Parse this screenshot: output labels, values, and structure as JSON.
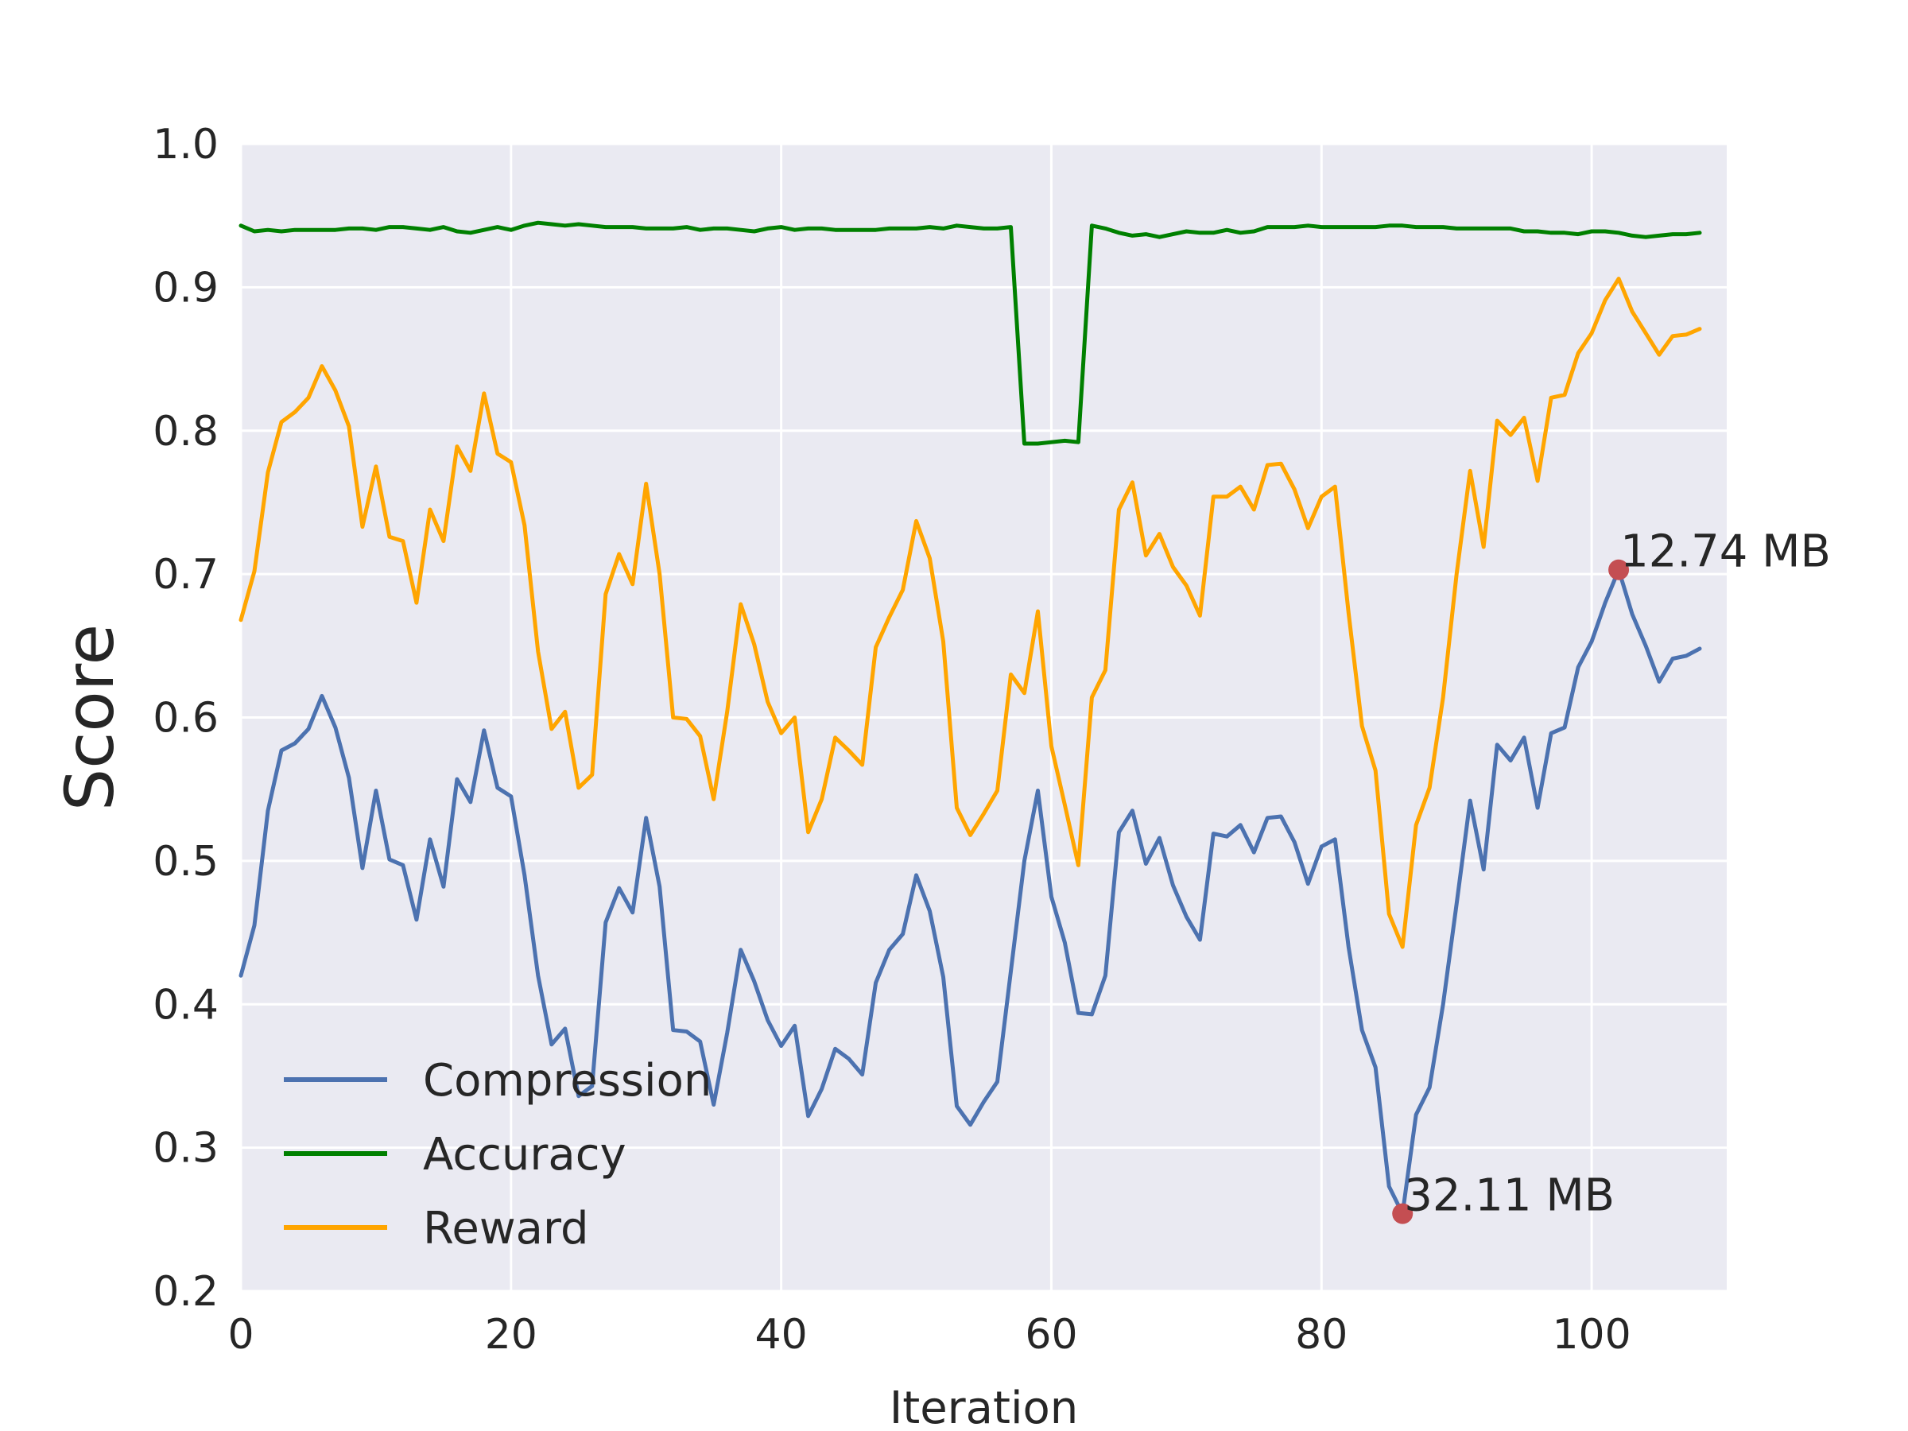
{
  "chart_data": {
    "type": "line",
    "xlabel": "Iteration",
    "ylabel": "Score",
    "xlim": [
      0,
      110
    ],
    "ylim": [
      0.2,
      1.0
    ],
    "xticks": [
      0,
      20,
      40,
      60,
      80,
      100
    ],
    "yticks": [
      0.2,
      0.3,
      0.4,
      0.5,
      0.6,
      0.7,
      0.8,
      0.9,
      1.0
    ],
    "grid": true,
    "legend_position": "lower-left",
    "background_color": "#EAEAF2",
    "series": [
      {
        "name": "Compression",
        "color": "#4C72B0",
        "x_start": 0,
        "x_step": 1,
        "values": [
          0.42,
          0.455,
          0.535,
          0.577,
          0.582,
          0.592,
          0.615,
          0.593,
          0.558,
          0.495,
          0.549,
          0.501,
          0.497,
          0.459,
          0.515,
          0.482,
          0.557,
          0.541,
          0.591,
          0.551,
          0.545,
          0.49,
          0.42,
          0.372,
          0.383,
          0.336,
          0.343,
          0.457,
          0.481,
          0.464,
          0.53,
          0.482,
          0.382,
          0.381,
          0.374,
          0.33,
          0.38,
          0.438,
          0.416,
          0.389,
          0.371,
          0.385,
          0.322,
          0.341,
          0.369,
          0.362,
          0.351,
          0.415,
          0.438,
          0.449,
          0.49,
          0.465,
          0.419,
          0.329,
          0.316,
          0.332,
          0.346,
          0.423,
          0.5,
          0.549,
          0.475,
          0.443,
          0.394,
          0.393,
          0.42,
          0.52,
          0.535,
          0.498,
          0.516,
          0.483,
          0.461,
          0.445,
          0.519,
          0.517,
          0.525,
          0.506,
          0.53,
          0.531,
          0.513,
          0.484,
          0.51,
          0.515,
          0.44,
          0.382,
          0.356,
          0.273,
          0.254,
          0.323,
          0.342,
          0.4,
          0.47,
          0.542,
          0.494,
          0.581,
          0.57,
          0.586,
          0.537,
          0.589,
          0.593,
          0.635,
          0.653,
          0.68,
          0.703,
          0.672,
          0.65,
          0.625,
          0.641,
          0.643,
          0.648
        ]
      },
      {
        "name": "Accuracy",
        "color": "#008000",
        "x_start": 0,
        "x_step": 1,
        "values": [
          0.943,
          0.939,
          0.94,
          0.939,
          0.94,
          0.94,
          0.94,
          0.94,
          0.941,
          0.941,
          0.94,
          0.942,
          0.942,
          0.941,
          0.94,
          0.942,
          0.939,
          0.938,
          0.94,
          0.942,
          0.94,
          0.943,
          0.945,
          0.944,
          0.943,
          0.944,
          0.943,
          0.942,
          0.942,
          0.942,
          0.941,
          0.941,
          0.941,
          0.942,
          0.94,
          0.941,
          0.941,
          0.94,
          0.939,
          0.941,
          0.942,
          0.94,
          0.941,
          0.941,
          0.94,
          0.94,
          0.94,
          0.94,
          0.941,
          0.941,
          0.941,
          0.942,
          0.941,
          0.943,
          0.942,
          0.941,
          0.941,
          0.942,
          0.791,
          0.791,
          0.792,
          0.793,
          0.792,
          0.943,
          0.941,
          0.938,
          0.936,
          0.937,
          0.935,
          0.937,
          0.939,
          0.938,
          0.938,
          0.94,
          0.938,
          0.939,
          0.942,
          0.942,
          0.942,
          0.943,
          0.942,
          0.942,
          0.942,
          0.942,
          0.942,
          0.943,
          0.943,
          0.942,
          0.942,
          0.942,
          0.941,
          0.941,
          0.941,
          0.941,
          0.941,
          0.939,
          0.939,
          0.938,
          0.938,
          0.937,
          0.939,
          0.939,
          0.938,
          0.936,
          0.935,
          0.936,
          0.937,
          0.937,
          0.938
        ]
      },
      {
        "name": "Reward",
        "color": "#FFA500",
        "x_start": 0,
        "x_step": 1,
        "values": [
          0.668,
          0.702,
          0.771,
          0.806,
          0.813,
          0.823,
          0.845,
          0.828,
          0.803,
          0.733,
          0.775,
          0.726,
          0.723,
          0.68,
          0.745,
          0.723,
          0.789,
          0.772,
          0.826,
          0.784,
          0.778,
          0.734,
          0.646,
          0.592,
          0.604,
          0.551,
          0.56,
          0.686,
          0.714,
          0.693,
          0.763,
          0.7,
          0.6,
          0.599,
          0.587,
          0.543,
          0.604,
          0.679,
          0.651,
          0.611,
          0.589,
          0.6,
          0.52,
          0.543,
          0.586,
          0.577,
          0.567,
          0.649,
          0.67,
          0.689,
          0.737,
          0.711,
          0.653,
          0.537,
          0.518,
          0.533,
          0.549,
          0.63,
          0.617,
          0.674,
          0.58,
          0.539,
          0.497,
          0.614,
          0.633,
          0.745,
          0.764,
          0.713,
          0.728,
          0.705,
          0.692,
          0.671,
          0.754,
          0.754,
          0.761,
          0.745,
          0.776,
          0.777,
          0.759,
          0.732,
          0.754,
          0.761,
          0.673,
          0.594,
          0.563,
          0.463,
          0.44,
          0.525,
          0.551,
          0.614,
          0.7,
          0.772,
          0.719,
          0.807,
          0.797,
          0.809,
          0.765,
          0.823,
          0.825,
          0.854,
          0.868,
          0.891,
          0.906,
          0.883,
          0.868,
          0.853,
          0.866,
          0.867,
          0.871
        ]
      }
    ],
    "annotations": [
      {
        "x": 86,
        "y": 0.254,
        "text": "32.11 MB",
        "marker_color": "#C44E52"
      },
      {
        "x": 102,
        "y": 0.703,
        "text": "12.74 MB",
        "marker_color": "#C44E52"
      }
    ]
  }
}
